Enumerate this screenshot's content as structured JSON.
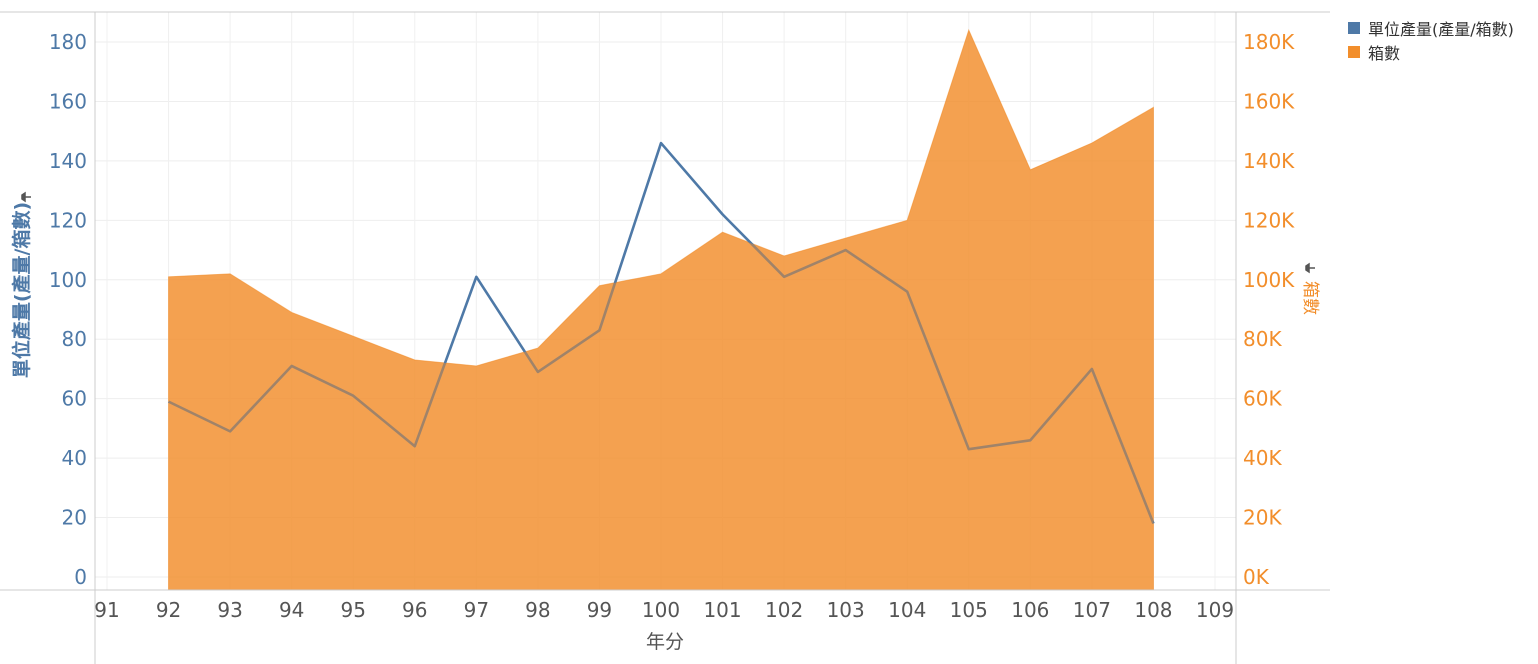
{
  "chart_data": {
    "type": "line",
    "title": "",
    "xlabel": "年分",
    "ylabel": "單位產量(產量/箱數)",
    "y2label": "箱數",
    "x_ticks": [
      "91",
      "92",
      "93",
      "94",
      "95",
      "96",
      "97",
      "98",
      "99",
      "100",
      "101",
      "102",
      "103",
      "104",
      "105",
      "106",
      "107",
      "108",
      "109"
    ],
    "x": [
      92,
      93,
      94,
      95,
      96,
      97,
      98,
      99,
      100,
      101,
      102,
      103,
      104,
      105,
      106,
      107,
      108
    ],
    "xlim": [
      91,
      109
    ],
    "y_ticks": [
      "0",
      "20",
      "40",
      "60",
      "80",
      "100",
      "120",
      "140",
      "160",
      "180"
    ],
    "ylim": [
      0,
      180
    ],
    "y2_ticks": [
      "0K",
      "20K",
      "40K",
      "60K",
      "80K",
      "100K",
      "120K",
      "140K",
      "160K",
      "180K"
    ],
    "y2lim": [
      0,
      180000
    ],
    "grid": true,
    "legend_position": "top-right",
    "series": [
      {
        "name": "單位產量(產量/箱數)",
        "type": "line",
        "axis": "left",
        "color": "#4e79a7",
        "values": [
          59,
          49,
          71,
          61,
          44,
          101,
          69,
          83,
          146,
          122,
          101,
          110,
          96,
          43,
          46,
          70,
          18
        ]
      },
      {
        "name": "箱數",
        "type": "area",
        "axis": "right",
        "color": "#f28e2b",
        "values": [
          101000,
          102000,
          89000,
          81000,
          73000,
          71000,
          77000,
          98000,
          102000,
          116000,
          108000,
          114000,
          120000,
          184000,
          137000,
          146000,
          158000
        ]
      }
    ]
  }
}
